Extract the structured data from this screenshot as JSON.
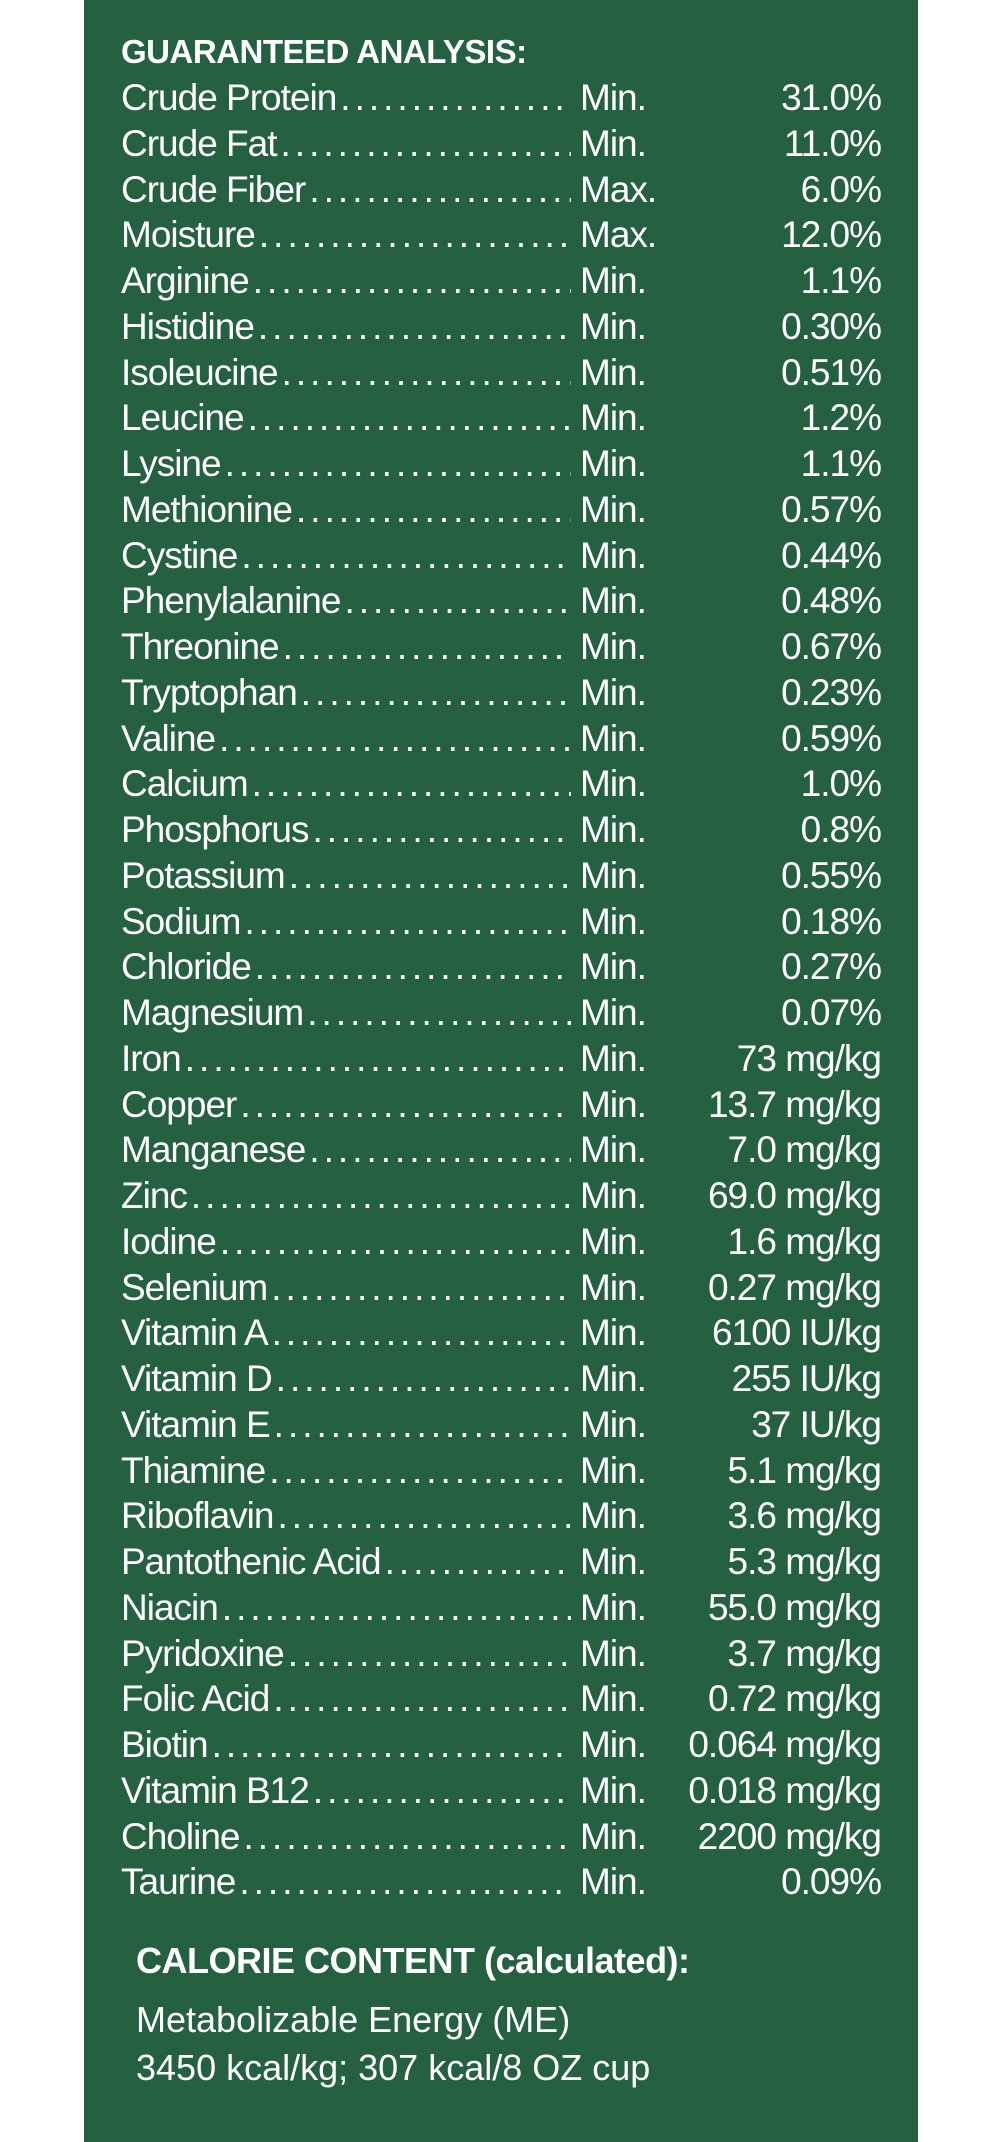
{
  "guaranteed_analysis": {
    "heading": "GUARANTEED ANALYSIS:",
    "rows": [
      {
        "name": "Crude Protein",
        "qualifier": "Min.",
        "value": "31.0%"
      },
      {
        "name": "Crude Fat",
        "qualifier": "Min.",
        "value": "11.0%"
      },
      {
        "name": "Crude Fiber",
        "qualifier": "Max.",
        "value": "6.0%"
      },
      {
        "name": "Moisture",
        "qualifier": "Max.",
        "value": "12.0%"
      },
      {
        "name": "Arginine",
        "qualifier": "Min.",
        "value": "1.1%"
      },
      {
        "name": "Histidine",
        "qualifier": "Min.",
        "value": "0.30%"
      },
      {
        "name": "Isoleucine",
        "qualifier": "Min.",
        "value": "0.51%"
      },
      {
        "name": "Leucine",
        "qualifier": "Min.",
        "value": "1.2%"
      },
      {
        "name": "Lysine",
        "qualifier": "Min.",
        "value": "1.1%"
      },
      {
        "name": "Methionine",
        "qualifier": "Min.",
        "value": "0.57%"
      },
      {
        "name": "Cystine",
        "qualifier": "Min.",
        "value": "0.44%"
      },
      {
        "name": "Phenylalanine",
        "qualifier": "Min.",
        "value": "0.48%"
      },
      {
        "name": "Threonine",
        "qualifier": "Min.",
        "value": "0.67%"
      },
      {
        "name": "Tryptophan",
        "qualifier": "Min.",
        "value": "0.23%"
      },
      {
        "name": "Valine",
        "qualifier": "Min.",
        "value": "0.59%"
      },
      {
        "name": "Calcium",
        "qualifier": "Min.",
        "value": "1.0%"
      },
      {
        "name": "Phosphorus",
        "qualifier": "Min.",
        "value": "0.8%"
      },
      {
        "name": "Potassium",
        "qualifier": "Min.",
        "value": "0.55%"
      },
      {
        "name": "Sodium",
        "qualifier": "Min.",
        "value": "0.18%"
      },
      {
        "name": "Chloride",
        "qualifier": "Min.",
        "value": "0.27%"
      },
      {
        "name": "Magnesium",
        "qualifier": "Min.",
        "value": "0.07%"
      },
      {
        "name": "Iron",
        "qualifier": "Min.",
        "value": "73 mg/kg"
      },
      {
        "name": "Copper",
        "qualifier": "Min.",
        "value": "13.7 mg/kg"
      },
      {
        "name": "Manganese",
        "qualifier": "Min.",
        "value": "7.0 mg/kg"
      },
      {
        "name": "Zinc",
        "qualifier": "Min.",
        "value": "69.0 mg/kg"
      },
      {
        "name": "Iodine",
        "qualifier": "Min.",
        "value": "1.6 mg/kg"
      },
      {
        "name": "Selenium",
        "qualifier": "Min.",
        "value": "0.27 mg/kg"
      },
      {
        "name": "Vitamin A",
        "qualifier": "Min.",
        "value": "6100 IU/kg"
      },
      {
        "name": "Vitamin D",
        "qualifier": "Min.",
        "value": "255 IU/kg"
      },
      {
        "name": "Vitamin E",
        "qualifier": "Min.",
        "value": "37 IU/kg"
      },
      {
        "name": "Thiamine",
        "qualifier": "Min.",
        "value": "5.1 mg/kg"
      },
      {
        "name": "Riboflavin",
        "qualifier": "Min.",
        "value": "3.6 mg/kg"
      },
      {
        "name": "Pantothenic Acid",
        "qualifier": "Min.",
        "value": "5.3 mg/kg"
      },
      {
        "name": "Niacin",
        "qualifier": "Min.",
        "value": "55.0 mg/kg"
      },
      {
        "name": "Pyridoxine",
        "qualifier": "Min.",
        "value": "3.7 mg/kg"
      },
      {
        "name": "Folic Acid",
        "qualifier": "Min.",
        "value": "0.72 mg/kg"
      },
      {
        "name": "Biotin",
        "qualifier": "Min.",
        "value": "0.064 mg/kg"
      },
      {
        "name": "Vitamin B12",
        "qualifier": "Min.",
        "value": "0.018 mg/kg"
      },
      {
        "name": "Choline",
        "qualifier": "Min.",
        "value": "2200 mg/kg"
      },
      {
        "name": "Taurine",
        "qualifier": "Min.",
        "value": "0.09%"
      }
    ]
  },
  "calorie_content": {
    "heading": "CALORIE CONTENT (calculated):",
    "line1": "Metabolizable Energy (ME)",
    "line2": "3450 kcal/kg; 307 kcal/8 OZ cup"
  },
  "colors": {
    "panel_background": "#256040",
    "text": "#ffffff",
    "page_background": "#ffffff"
  }
}
